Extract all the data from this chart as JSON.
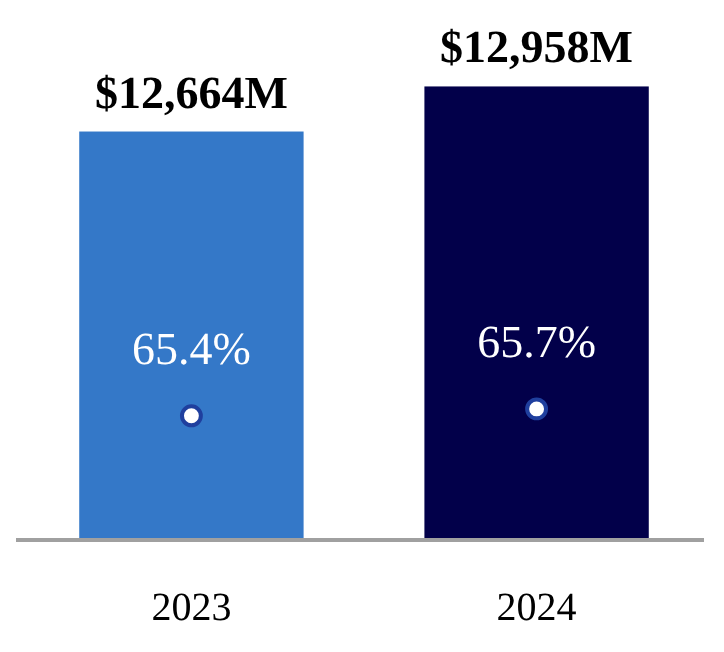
{
  "chart_data": {
    "type": "bar",
    "categories": [
      "2023",
      "2024"
    ],
    "ylim": [
      10000,
      13000
    ],
    "y2lim": [
      60,
      80
    ],
    "tick_labels": "x",
    "series": [
      {
        "values": [
          12664,
          12958
        ],
        "colors": [
          "#3478c8",
          "#02004a"
        ],
        "value_labels": [
          "$12,664M",
          "$12,958M"
        ]
      },
      {
        "type": "scatter",
        "axis": "y2",
        "values": [
          65.4,
          65.7
        ],
        "color": "#ffffff",
        "marker": "circle",
        "value_labels": [
          "65.4%",
          "65.7%"
        ]
      }
    ]
  }
}
